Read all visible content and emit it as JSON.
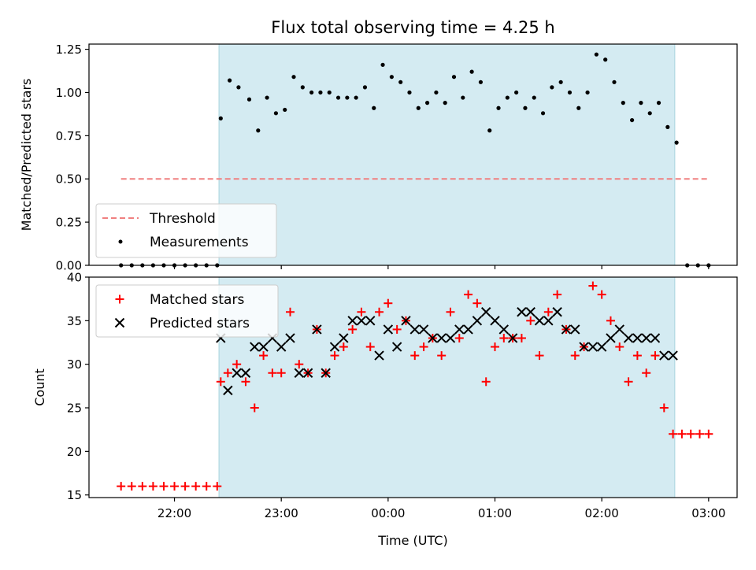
{
  "chart_data": [
    {
      "type": "scatter",
      "title": "Flux total observing time = 4.25 h",
      "ylabel": "Matched/Predicted stars",
      "ylim": [
        0,
        1.28
      ],
      "yticks": [
        0.0,
        0.25,
        0.5,
        0.75,
        1.0,
        1.25
      ],
      "xticks": [
        "22:00",
        "23:00",
        "00:00",
        "01:00",
        "02:00",
        "03:00"
      ],
      "observing_window": {
        "start": "22:25",
        "end": "02:41",
        "color": "#d4ebf2"
      },
      "threshold": {
        "name": "Threshold",
        "value": 0.5,
        "x_start": "21:30",
        "x_end": "03:00",
        "color": "#f08080"
      },
      "series": [
        {
          "name": "Measurements",
          "color": "#000000",
          "points": [
            [
              "21:30",
              0
            ],
            [
              "21:36",
              0
            ],
            [
              "21:42",
              0
            ],
            [
              "21:48",
              0
            ],
            [
              "21:54",
              0
            ],
            [
              "22:00",
              0
            ],
            [
              "22:06",
              0
            ],
            [
              "22:12",
              0
            ],
            [
              "22:18",
              0
            ],
            [
              "22:24",
              0
            ],
            [
              "22:26",
              0.85
            ],
            [
              "22:31",
              1.07
            ],
            [
              "22:36",
              1.03
            ],
            [
              "22:42",
              0.96
            ],
            [
              "22:47",
              0.78
            ],
            [
              "22:52",
              0.97
            ],
            [
              "22:57",
              0.88
            ],
            [
              "23:02",
              0.9
            ],
            [
              "23:07",
              1.09
            ],
            [
              "23:12",
              1.03
            ],
            [
              "23:17",
              1.0
            ],
            [
              "23:22",
              1.0
            ],
            [
              "23:27",
              1.0
            ],
            [
              "23:32",
              0.97
            ],
            [
              "23:37",
              0.97
            ],
            [
              "23:42",
              0.97
            ],
            [
              "23:47",
              1.03
            ],
            [
              "23:52",
              0.91
            ],
            [
              "23:57",
              1.16
            ],
            [
              "00:02",
              1.09
            ],
            [
              "00:07",
              1.06
            ],
            [
              "00:12",
              1.0
            ],
            [
              "00:17",
              0.91
            ],
            [
              "00:22",
              0.94
            ],
            [
              "00:27",
              1.0
            ],
            [
              "00:32",
              0.94
            ],
            [
              "00:37",
              1.09
            ],
            [
              "00:42",
              0.97
            ],
            [
              "00:47",
              1.12
            ],
            [
              "00:52",
              1.06
            ],
            [
              "00:57",
              0.78
            ],
            [
              "01:02",
              0.91
            ],
            [
              "01:07",
              0.97
            ],
            [
              "01:12",
              1.0
            ],
            [
              "01:17",
              0.91
            ],
            [
              "01:22",
              0.97
            ],
            [
              "01:27",
              0.88
            ],
            [
              "01:32",
              1.03
            ],
            [
              "01:37",
              1.06
            ],
            [
              "01:42",
              1.0
            ],
            [
              "01:47",
              0.91
            ],
            [
              "01:52",
              1.0
            ],
            [
              "01:57",
              1.22
            ],
            [
              "02:02",
              1.19
            ],
            [
              "02:07",
              1.06
            ],
            [
              "02:12",
              0.94
            ],
            [
              "02:17",
              0.84
            ],
            [
              "02:22",
              0.94
            ],
            [
              "02:27",
              0.88
            ],
            [
              "02:32",
              0.94
            ],
            [
              "02:37",
              0.8
            ],
            [
              "02:42",
              0.71
            ],
            [
              "02:48",
              0
            ],
            [
              "02:54",
              0
            ],
            [
              "03:00",
              0
            ]
          ]
        }
      ],
      "legend": "lower-left"
    },
    {
      "type": "scatter",
      "xlabel": "Time (UTC)",
      "ylabel": "Count",
      "ylim": [
        14.7,
        40
      ],
      "yticks": [
        15,
        20,
        25,
        30,
        35,
        40
      ],
      "xticks": [
        "22:00",
        "23:00",
        "00:00",
        "01:00",
        "02:00",
        "03:00"
      ],
      "series": [
        {
          "name": "Matched stars",
          "marker": "plus",
          "color": "#ff0000",
          "points": [
            [
              "21:30",
              16
            ],
            [
              "21:36",
              16
            ],
            [
              "21:42",
              16
            ],
            [
              "21:48",
              16
            ],
            [
              "21:54",
              16
            ],
            [
              "22:00",
              16
            ],
            [
              "22:06",
              16
            ],
            [
              "22:12",
              16
            ],
            [
              "22:18",
              16
            ],
            [
              "22:24",
              16
            ],
            [
              "22:26",
              28
            ],
            [
              "22:30",
              29
            ],
            [
              "22:35",
              30
            ],
            [
              "22:40",
              28
            ],
            [
              "22:45",
              25
            ],
            [
              "22:50",
              31
            ],
            [
              "22:55",
              29
            ],
            [
              "23:00",
              29
            ],
            [
              "23:05",
              36
            ],
            [
              "23:10",
              30
            ],
            [
              "23:15",
              29
            ],
            [
              "23:20",
              34
            ],
            [
              "23:25",
              29
            ],
            [
              "23:30",
              31
            ],
            [
              "23:35",
              32
            ],
            [
              "23:40",
              34
            ],
            [
              "23:45",
              36
            ],
            [
              "23:50",
              32
            ],
            [
              "23:55",
              36
            ],
            [
              "00:00",
              37
            ],
            [
              "00:05",
              34
            ],
            [
              "00:10",
              35
            ],
            [
              "00:15",
              31
            ],
            [
              "00:20",
              32
            ],
            [
              "00:25",
              33
            ],
            [
              "00:30",
              31
            ],
            [
              "00:35",
              36
            ],
            [
              "00:40",
              33
            ],
            [
              "00:45",
              38
            ],
            [
              "00:50",
              37
            ],
            [
              "00:55",
              28
            ],
            [
              "01:00",
              32
            ],
            [
              "01:05",
              33
            ],
            [
              "01:10",
              33
            ],
            [
              "01:15",
              33
            ],
            [
              "01:20",
              35
            ],
            [
              "01:25",
              31
            ],
            [
              "01:30",
              36
            ],
            [
              "01:35",
              38
            ],
            [
              "01:40",
              34
            ],
            [
              "01:45",
              31
            ],
            [
              "01:50",
              32
            ],
            [
              "01:55",
              39
            ],
            [
              "02:00",
              38
            ],
            [
              "02:05",
              35
            ],
            [
              "02:10",
              32
            ],
            [
              "02:15",
              28
            ],
            [
              "02:20",
              31
            ],
            [
              "02:25",
              29
            ],
            [
              "02:30",
              31
            ],
            [
              "02:35",
              25
            ],
            [
              "02:40",
              22
            ],
            [
              "02:45",
              22
            ],
            [
              "02:50",
              22
            ],
            [
              "02:55",
              22
            ],
            [
              "03:00",
              22
            ]
          ]
        },
        {
          "name": "Predicted stars",
          "marker": "x",
          "color": "#000000",
          "points": [
            [
              "22:26",
              33
            ],
            [
              "22:30",
              27
            ],
            [
              "22:35",
              29
            ],
            [
              "22:40",
              29
            ],
            [
              "22:45",
              32
            ],
            [
              "22:50",
              32
            ],
            [
              "22:55",
              33
            ],
            [
              "23:00",
              32
            ],
            [
              "23:05",
              33
            ],
            [
              "23:10",
              29
            ],
            [
              "23:15",
              29
            ],
            [
              "23:20",
              34
            ],
            [
              "23:25",
              29
            ],
            [
              "23:30",
              32
            ],
            [
              "23:35",
              33
            ],
            [
              "23:40",
              35
            ],
            [
              "23:45",
              35
            ],
            [
              "23:50",
              35
            ],
            [
              "23:55",
              31
            ],
            [
              "00:00",
              34
            ],
            [
              "00:05",
              32
            ],
            [
              "00:10",
              35
            ],
            [
              "00:15",
              34
            ],
            [
              "00:20",
              34
            ],
            [
              "00:25",
              33
            ],
            [
              "00:30",
              33
            ],
            [
              "00:35",
              33
            ],
            [
              "00:40",
              34
            ],
            [
              "00:45",
              34
            ],
            [
              "00:50",
              35
            ],
            [
              "00:55",
              36
            ],
            [
              "01:00",
              35
            ],
            [
              "01:05",
              34
            ],
            [
              "01:10",
              33
            ],
            [
              "01:15",
              36
            ],
            [
              "01:20",
              36
            ],
            [
              "01:25",
              35
            ],
            [
              "01:30",
              35
            ],
            [
              "01:35",
              36
            ],
            [
              "01:40",
              34
            ],
            [
              "01:45",
              34
            ],
            [
              "01:50",
              32
            ],
            [
              "01:55",
              32
            ],
            [
              "02:00",
              32
            ],
            [
              "02:05",
              33
            ],
            [
              "02:10",
              34
            ],
            [
              "02:15",
              33
            ],
            [
              "02:20",
              33
            ],
            [
              "02:25",
              33
            ],
            [
              "02:30",
              33
            ],
            [
              "02:35",
              31
            ],
            [
              "02:40",
              31
            ]
          ]
        }
      ],
      "legend": "top-left"
    }
  ]
}
